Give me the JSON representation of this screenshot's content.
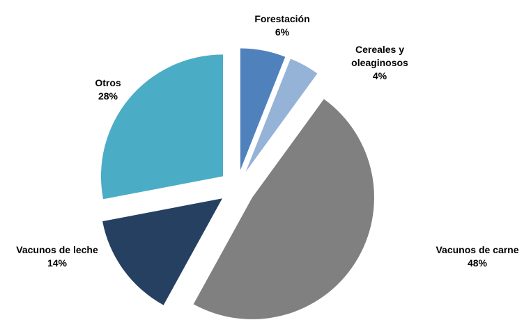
{
  "chart_data": {
    "type": "pie",
    "categories": [
      "Forestación",
      "Cereales y oleaginosos",
      "Vacunos de carne",
      "Vacunos de leche",
      "Otros"
    ],
    "values": [
      6,
      4,
      48,
      14,
      28
    ],
    "value_labels": [
      "6%",
      "4%",
      "48%",
      "14%",
      "28%"
    ],
    "colors": [
      "#4f81bd",
      "#95b3d7",
      "#808080",
      "#254061",
      "#4bacc6"
    ]
  }
}
